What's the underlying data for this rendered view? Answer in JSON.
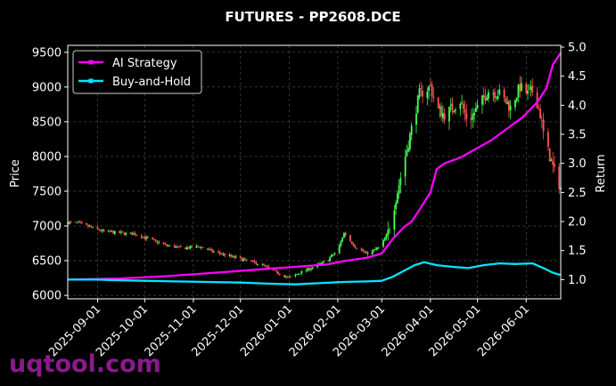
{
  "chart_data": {
    "type": "line",
    "title": "FUTURES - PP2608.DCE",
    "ylabel": "Price",
    "y2label": "Return",
    "ylim": [
      5950,
      9600
    ],
    "y2lim": [
      0.67,
      5.03
    ],
    "yticks": [
      6000,
      6500,
      7000,
      7500,
      8000,
      8500,
      9000,
      9500
    ],
    "y2ticks": [
      1.0,
      1.5,
      2.0,
      2.5,
      3.0,
      3.5,
      4.0,
      4.5,
      5.0
    ],
    "y2tick_labels": [
      "1.0",
      "1.5",
      "2.0",
      "2.5",
      "3.0",
      "3.5",
      "4.0",
      "4.5",
      "5.0"
    ],
    "xlim": [
      "2025-08-13",
      "2026-06-23"
    ],
    "xticks": [
      "2025-09-01",
      "2025-10-01",
      "2025-11-01",
      "2025-12-01",
      "2026-01-01",
      "2026-02-01",
      "2026-03-01",
      "2026-04-01",
      "2026-05-01",
      "2026-06-01"
    ],
    "grid": true,
    "legend_position": "top-left",
    "colors": {
      "background": "#000000",
      "up": "#44ff55",
      "down": "#ff5555",
      "strategy": "#ff00ff",
      "benchmark": "#00e5ff",
      "grid": "#555555"
    },
    "price_anchors": [
      [
        "2025-08-13",
        7050
      ],
      [
        "2025-08-20",
        7040
      ],
      [
        "2025-08-28",
        6980
      ],
      [
        "2025-09-05",
        6920
      ],
      [
        "2025-09-15",
        6900
      ],
      [
        "2025-09-25",
        6880
      ],
      [
        "2025-10-05",
        6800
      ],
      [
        "2025-10-15",
        6720
      ],
      [
        "2025-10-25",
        6680
      ],
      [
        "2025-11-05",
        6700
      ],
      [
        "2025-11-15",
        6620
      ],
      [
        "2025-11-25",
        6560
      ],
      [
        "2025-12-05",
        6500
      ],
      [
        "2025-12-15",
        6440
      ],
      [
        "2025-12-22",
        6350
      ],
      [
        "2026-01-01",
        6250
      ],
      [
        "2026-01-10",
        6350
      ],
      [
        "2026-01-18",
        6420
      ],
      [
        "2026-01-25",
        6500
      ],
      [
        "2026-02-01",
        6650
      ],
      [
        "2026-02-05",
        6900
      ],
      [
        "2026-02-12",
        6700
      ],
      [
        "2026-02-20",
        6600
      ],
      [
        "2026-02-28",
        6700
      ],
      [
        "2026-03-05",
        6900
      ],
      [
        "2026-03-10",
        7400
      ],
      [
        "2026-03-15",
        7900
      ],
      [
        "2026-03-20",
        8400
      ],
      [
        "2026-03-25",
        8900
      ],
      [
        "2026-04-01",
        9000
      ],
      [
        "2026-04-05",
        8700
      ],
      [
        "2026-04-10",
        8600
      ],
      [
        "2026-04-15",
        8700
      ],
      [
        "2026-04-20",
        8800
      ],
      [
        "2026-04-25",
        8500
      ],
      [
        "2026-05-01",
        8700
      ],
      [
        "2026-05-08",
        8950
      ],
      [
        "2026-05-15",
        8900
      ],
      [
        "2026-05-22",
        8700
      ],
      [
        "2026-05-28",
        9000
      ],
      [
        "2026-06-02",
        8900
      ],
      [
        "2026-06-06",
        8950
      ],
      [
        "2026-06-10",
        8600
      ],
      [
        "2026-06-13",
        8200
      ],
      [
        "2026-06-16",
        8000
      ],
      [
        "2026-06-20",
        7700
      ],
      [
        "2026-06-23",
        7550
      ]
    ],
    "series": [
      {
        "name": "AI Strategy",
        "points": [
          [
            "2025-08-13",
            1.0
          ],
          [
            "2025-09-15",
            1.02
          ],
          [
            "2025-10-15",
            1.06
          ],
          [
            "2025-11-15",
            1.12
          ],
          [
            "2025-12-15",
            1.18
          ],
          [
            "2026-01-05",
            1.22
          ],
          [
            "2026-01-25",
            1.26
          ],
          [
            "2026-02-05",
            1.32
          ],
          [
            "2026-02-20",
            1.38
          ],
          [
            "2026-03-01",
            1.45
          ],
          [
            "2026-03-08",
            1.7
          ],
          [
            "2026-03-15",
            1.9
          ],
          [
            "2026-03-20",
            2.0
          ],
          [
            "2026-03-25",
            2.2
          ],
          [
            "2026-04-01",
            2.5
          ],
          [
            "2026-04-05",
            2.9
          ],
          [
            "2026-04-10",
            3.0
          ],
          [
            "2026-04-20",
            3.1
          ],
          [
            "2026-04-30",
            3.25
          ],
          [
            "2026-05-10",
            3.4
          ],
          [
            "2026-05-20",
            3.6
          ],
          [
            "2026-05-30",
            3.8
          ],
          [
            "2026-06-08",
            4.05
          ],
          [
            "2026-06-14",
            4.3
          ],
          [
            "2026-06-18",
            4.7
          ],
          [
            "2026-06-23",
            4.9
          ]
        ]
      },
      {
        "name": "Buy-and-Hold",
        "points": [
          [
            "2025-08-13",
            1.0
          ],
          [
            "2025-09-01",
            1.0
          ],
          [
            "2025-09-15",
            0.99
          ],
          [
            "2025-10-01",
            0.98
          ],
          [
            "2025-10-20",
            0.97
          ],
          [
            "2025-11-10",
            0.96
          ],
          [
            "2025-12-01",
            0.95
          ],
          [
            "2025-12-20",
            0.93
          ],
          [
            "2026-01-05",
            0.92
          ],
          [
            "2026-01-20",
            0.94
          ],
          [
            "2026-02-05",
            0.96
          ],
          [
            "2026-02-20",
            0.97
          ],
          [
            "2026-03-01",
            0.98
          ],
          [
            "2026-03-08",
            1.05
          ],
          [
            "2026-03-15",
            1.15
          ],
          [
            "2026-03-22",
            1.25
          ],
          [
            "2026-03-28",
            1.3
          ],
          [
            "2026-04-05",
            1.25
          ],
          [
            "2026-04-15",
            1.22
          ],
          [
            "2026-04-25",
            1.2
          ],
          [
            "2026-05-05",
            1.25
          ],
          [
            "2026-05-15",
            1.28
          ],
          [
            "2026-05-25",
            1.27
          ],
          [
            "2026-06-05",
            1.28
          ],
          [
            "2026-06-12",
            1.2
          ],
          [
            "2026-06-18",
            1.12
          ],
          [
            "2026-06-23",
            1.08
          ]
        ]
      }
    ]
  },
  "watermark": "uqtool.com"
}
